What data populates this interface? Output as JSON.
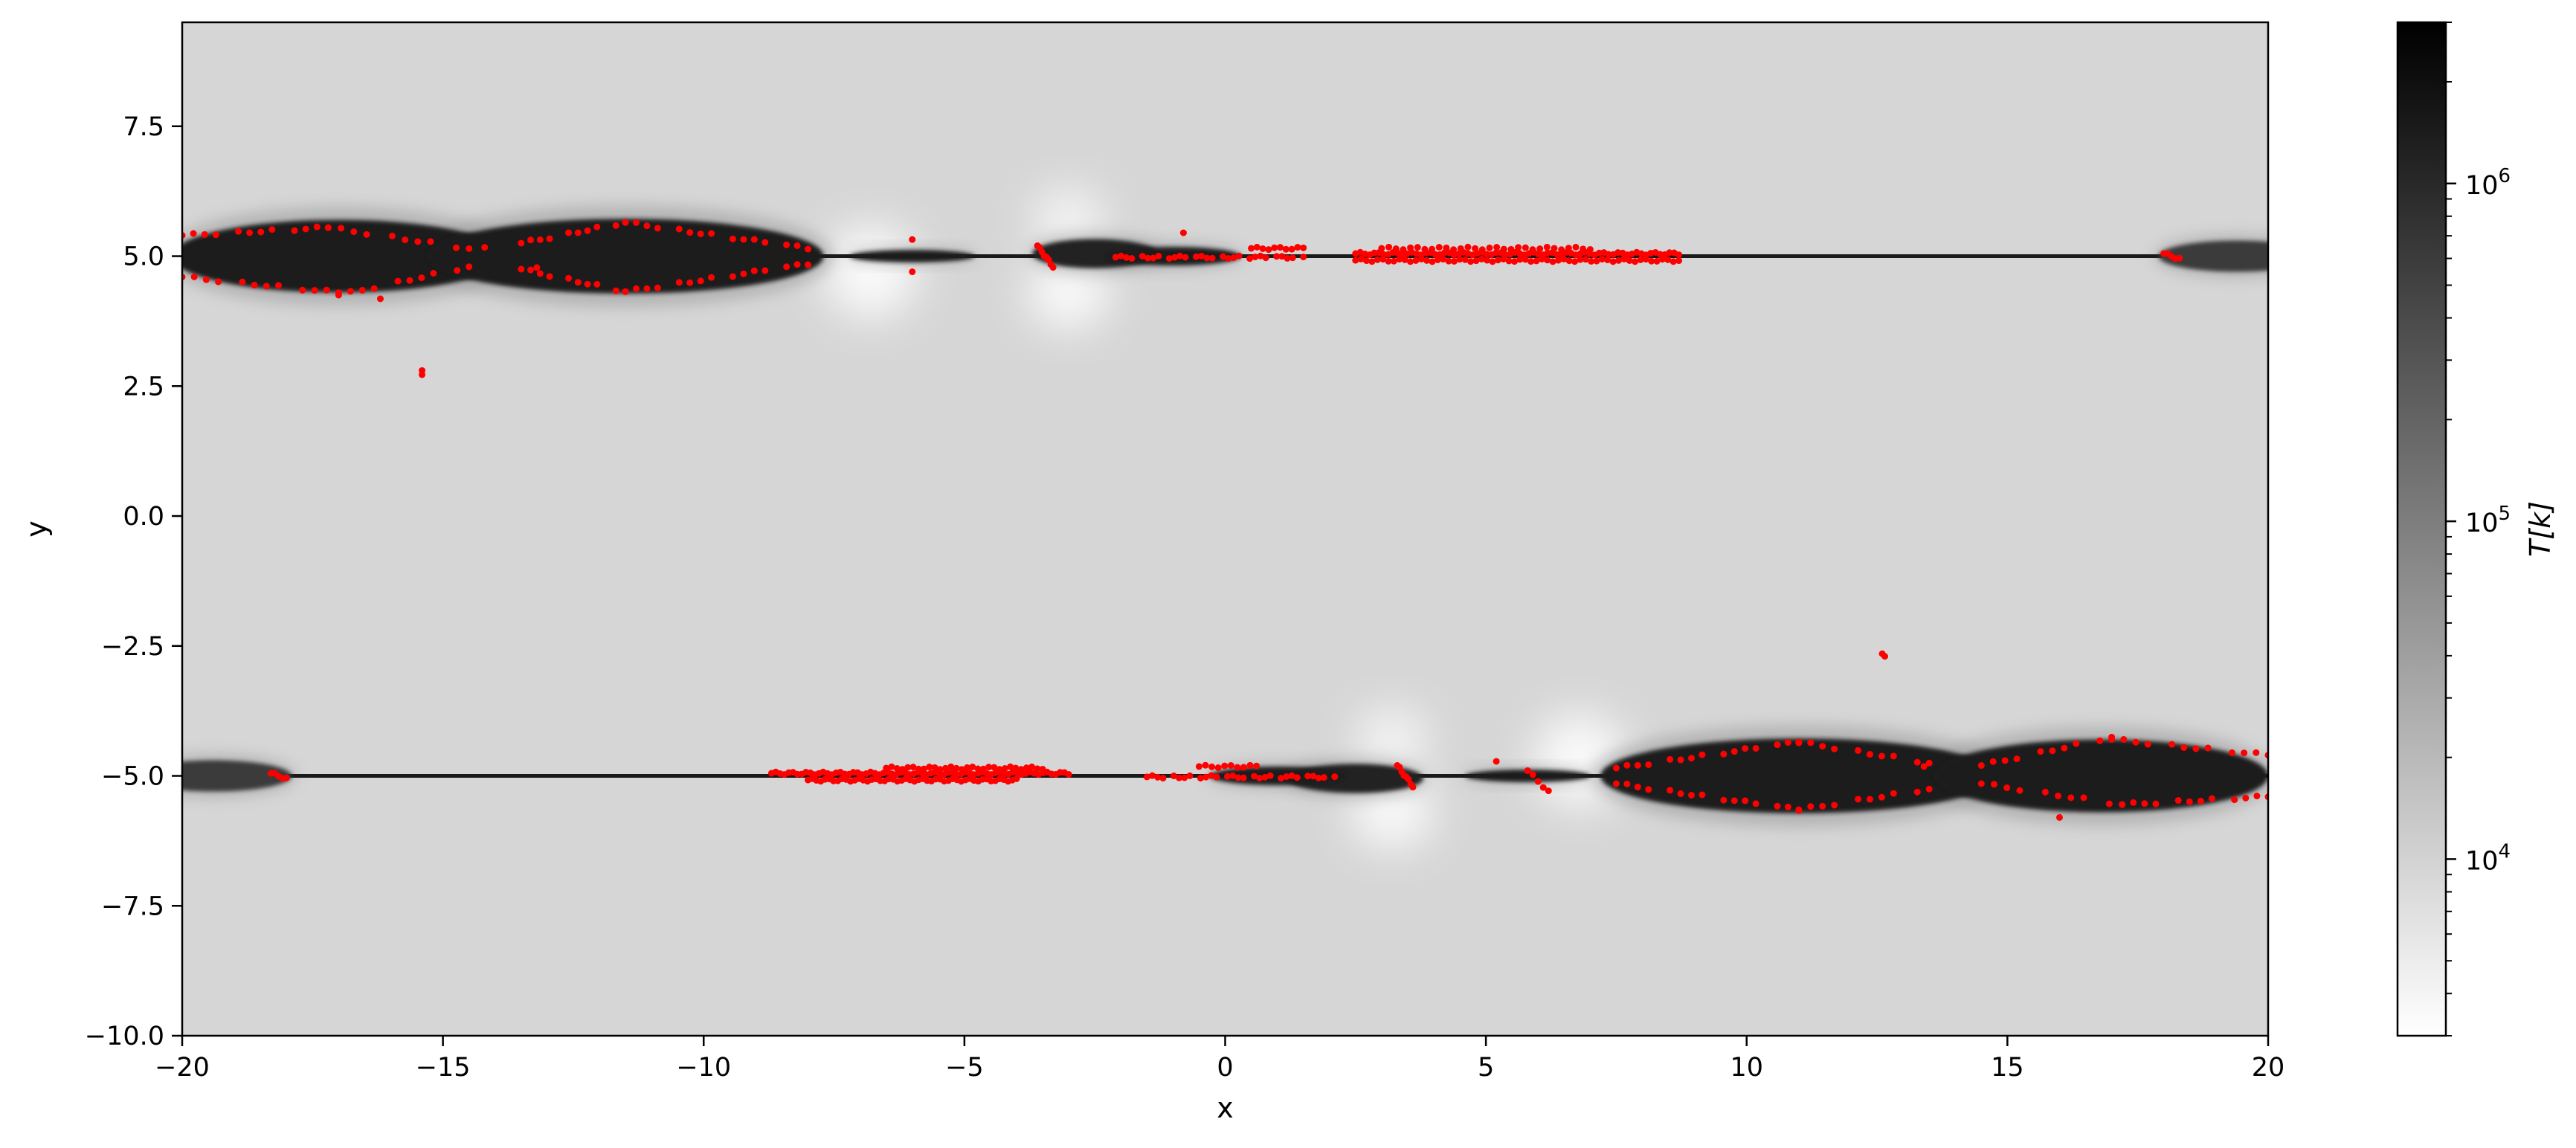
{
  "chart_data": {
    "type": "heatmap",
    "title": "",
    "xlabel": "x",
    "ylabel": "y",
    "xlim": [
      -20,
      20
    ],
    "ylim": [
      -10,
      9.5
    ],
    "grid": false,
    "x_ticks": [
      {
        "value": -20,
        "label": "−20"
      },
      {
        "value": -15,
        "label": "−15"
      },
      {
        "value": -10,
        "label": "−10"
      },
      {
        "value": -5,
        "label": "−5"
      },
      {
        "value": 0,
        "label": "0"
      },
      {
        "value": 5,
        "label": "5"
      },
      {
        "value": 10,
        "label": "10"
      },
      {
        "value": 15,
        "label": "15"
      },
      {
        "value": 20,
        "label": "20"
      }
    ],
    "y_ticks": [
      {
        "value": 7.5,
        "label": "7.5"
      },
      {
        "value": 5.0,
        "label": "5.0"
      },
      {
        "value": 2.5,
        "label": "2.5"
      },
      {
        "value": 0.0,
        "label": "0.0"
      },
      {
        "value": -2.5,
        "label": "−2.5"
      },
      {
        "value": -5.0,
        "label": "−5.0"
      },
      {
        "value": -7.5,
        "label": "−7.5"
      },
      {
        "value": -10.0,
        "label": "−10.0"
      }
    ],
    "colorbar": {
      "label": "T[k]",
      "scale": "log",
      "range": [
        3000,
        3000000
      ],
      "colormap": "gray_r",
      "ticks": [
        {
          "value": 10000,
          "base": "10",
          "exp": "4"
        },
        {
          "value": 100000,
          "base": "10",
          "exp": "5"
        },
        {
          "value": 1000000,
          "base": "10",
          "exp": "6"
        }
      ]
    },
    "background_temperature": 9000,
    "current_sheets": [
      {
        "y": 5.0,
        "x_start": -20,
        "x_end": 20,
        "temperature": 1500000
      },
      {
        "y": -5.0,
        "x_start": -20,
        "x_end": 20,
        "temperature": 1500000
      }
    ],
    "hot_islands": [
      {
        "cx": -17.0,
        "cy": 5.0,
        "half_width": 3.2,
        "half_height": 0.7,
        "temperature": 1400000
      },
      {
        "cx": -11.5,
        "cy": 5.0,
        "half_width": 3.8,
        "half_height": 0.72,
        "temperature": 1400000
      },
      {
        "cx": -6.0,
        "cy": 5.0,
        "half_width": 1.2,
        "half_height": 0.12,
        "temperature": 1500000
      },
      {
        "cx": -2.5,
        "cy": 5.05,
        "half_width": 1.2,
        "half_height": 0.28,
        "temperature": 1200000
      },
      {
        "cx": -1.0,
        "cy": 5.0,
        "half_width": 1.3,
        "half_height": 0.18,
        "temperature": 1500000
      },
      {
        "cx": 19.4,
        "cy": 5.0,
        "half_width": 1.5,
        "half_height": 0.3,
        "temperature": 600000
      },
      {
        "cx": 11.0,
        "cy": -5.0,
        "half_width": 3.8,
        "half_height": 0.72,
        "temperature": 1400000
      },
      {
        "cx": 16.8,
        "cy": -5.0,
        "half_width": 3.2,
        "half_height": 0.7,
        "temperature": 1400000
      },
      {
        "cx": 2.5,
        "cy": -5.05,
        "half_width": 1.3,
        "half_height": 0.28,
        "temperature": 1200000
      },
      {
        "cx": 5.8,
        "cy": -5.0,
        "half_width": 1.2,
        "half_height": 0.12,
        "temperature": 1500000
      },
      {
        "cx": 1.0,
        "cy": -5.0,
        "half_width": 1.3,
        "half_height": 0.18,
        "temperature": 1500000
      },
      {
        "cx": -19.4,
        "cy": -5.0,
        "half_width": 1.5,
        "half_height": 0.3,
        "temperature": 600000
      }
    ],
    "cool_spots": [
      {
        "cx": -6.8,
        "cy": 4.7,
        "rx": 0.9,
        "ry": 0.9,
        "temperature": 3500
      },
      {
        "cx": -3.0,
        "cy": 4.3,
        "rx": 0.8,
        "ry": 0.7,
        "temperature": 3500
      },
      {
        "cx": -3.0,
        "cy": 5.7,
        "rx": 0.7,
        "ry": 0.6,
        "temperature": 4000
      },
      {
        "cx": 6.8,
        "cy": -4.7,
        "rx": 0.9,
        "ry": 0.9,
        "temperature": 3500
      },
      {
        "cx": 3.2,
        "cy": -5.7,
        "rx": 0.8,
        "ry": 0.7,
        "temperature": 3500
      },
      {
        "cx": 3.2,
        "cy": -4.3,
        "rx": 0.7,
        "ry": 0.6,
        "temperature": 4000
      }
    ],
    "particle_color": "#ff0000",
    "particle_arcs": [
      {
        "xs": -20.0,
        "xe": -17.2,
        "yl": 5.4,
        "yr": 5.55,
        "n": 14,
        "gap": 0.45
      },
      {
        "xs": -17.2,
        "xe": -14.5,
        "yl": 5.55,
        "yr": 5.15,
        "n": 12,
        "gap": 0.4
      },
      {
        "xs": -20.0,
        "xe": -17.0,
        "yl": 4.6,
        "yr": 4.3,
        "n": 14,
        "gap": 0.45
      },
      {
        "xs": -17.0,
        "xe": -14.5,
        "yl": 4.25,
        "yr": 4.8,
        "n": 12,
        "gap": 0.4
      },
      {
        "xs": -13.5,
        "xe": -11.5,
        "yl": 5.25,
        "yr": 5.65,
        "n": 12,
        "gap": 0.4
      },
      {
        "xs": -11.5,
        "xe": -8.0,
        "yl": 5.65,
        "yr": 5.15,
        "n": 18,
        "gap": 0.3
      },
      {
        "xs": -13.5,
        "xe": -11.5,
        "yl": 4.75,
        "yr": 4.32,
        "n": 12,
        "gap": 0.4
      },
      {
        "xs": -11.5,
        "xe": -8.0,
        "yl": 4.32,
        "yr": 4.85,
        "n": 18,
        "gap": 0.3
      },
      {
        "xs": -3.6,
        "xe": -3.3,
        "yl": 5.2,
        "yr": 4.8,
        "n": 8,
        "gap": 0.0
      },
      {
        "xs": -2.1,
        "xe": 1.5,
        "yl": 4.98,
        "yr": 4.98,
        "n": 36,
        "gap": 0.15
      },
      {
        "xs": 0.5,
        "xe": 1.5,
        "yl": 5.15,
        "yr": 5.15,
        "n": 10,
        "gap": 0.0
      },
      {
        "xs": 2.5,
        "xe": 8.7,
        "yl": 5.05,
        "yr": 5.05,
        "n": 70,
        "gap": 0.0
      },
      {
        "xs": 2.5,
        "xe": 8.7,
        "yl": 4.92,
        "yr": 4.92,
        "n": 60,
        "gap": 0.0
      },
      {
        "xs": 3.0,
        "xe": 7.0,
        "yl": 5.15,
        "yr": 5.15,
        "n": 30,
        "gap": 0.0
      },
      {
        "xs": 18.0,
        "xe": 18.3,
        "yl": 5.05,
        "yr": 4.95,
        "n": 5,
        "gap": 0.0
      },
      {
        "xs": -18.3,
        "xe": -18.0,
        "yl": -4.95,
        "yr": -5.05,
        "n": 5,
        "gap": 0.0
      },
      {
        "xs": -8.7,
        "xe": -3.0,
        "yl": -4.95,
        "yr": -4.95,
        "n": 70,
        "gap": 0.0
      },
      {
        "xs": -8.0,
        "xe": -4.0,
        "yl": -5.08,
        "yr": -5.08,
        "n": 50,
        "gap": 0.0
      },
      {
        "xs": -6.5,
        "xe": -3.5,
        "yl": -4.85,
        "yr": -4.85,
        "n": 30,
        "gap": 0.0
      },
      {
        "xs": -1.5,
        "xe": 2.1,
        "yl": -5.02,
        "yr": -5.02,
        "n": 36,
        "gap": 0.15
      },
      {
        "xs": -0.5,
        "xe": 0.6,
        "yl": -4.82,
        "yr": -4.82,
        "n": 10,
        "gap": 0.0
      },
      {
        "xs": 3.3,
        "xe": 3.6,
        "yl": -4.8,
        "yr": -5.2,
        "n": 8,
        "gap": 0.0
      },
      {
        "xs": 5.8,
        "xe": 6.2,
        "yl": -4.9,
        "yr": -5.3,
        "n": 5,
        "gap": 0.0
      },
      {
        "xs": 7.5,
        "xe": 11.0,
        "yl": -4.85,
        "yr": -4.35,
        "n": 18,
        "gap": 0.3
      },
      {
        "xs": 11.0,
        "xe": 13.5,
        "yl": -4.35,
        "yr": -4.75,
        "n": 12,
        "gap": 0.4
      },
      {
        "xs": 7.5,
        "xe": 11.0,
        "yl": -5.15,
        "yr": -5.65,
        "n": 18,
        "gap": 0.3
      },
      {
        "xs": 11.0,
        "xe": 13.5,
        "yl": -5.65,
        "yr": -5.25,
        "n": 12,
        "gap": 0.4
      },
      {
        "xs": 14.5,
        "xe": 17.0,
        "yl": -4.8,
        "yr": -4.25,
        "n": 12,
        "gap": 0.4
      },
      {
        "xs": 17.0,
        "xe": 20.0,
        "yl": -4.3,
        "yr": -4.6,
        "n": 14,
        "gap": 0.45
      },
      {
        "xs": 14.5,
        "xe": 17.2,
        "yl": -5.15,
        "yr": -5.55,
        "n": 12,
        "gap": 0.4
      },
      {
        "xs": 17.2,
        "xe": 20.0,
        "yl": -5.55,
        "yr": -5.4,
        "n": 14,
        "gap": 0.45
      }
    ],
    "particle_singles": [
      {
        "x": -15.4,
        "y": 2.8
      },
      {
        "x": -15.4,
        "y": 2.72
      },
      {
        "x": -16.2,
        "y": 4.18
      },
      {
        "x": -6.0,
        "y": 5.32
      },
      {
        "x": -6.0,
        "y": 4.7
      },
      {
        "x": -0.8,
        "y": 5.45
      },
      {
        "x": 12.6,
        "y": -2.65
      },
      {
        "x": 12.65,
        "y": -2.7
      },
      {
        "x": 16.0,
        "y": -5.8
      },
      {
        "x": 5.2,
        "y": -4.72
      },
      {
        "x": 13.4,
        "y": -4.82
      },
      {
        "x": -13.2,
        "y": 4.78
      },
      {
        "x": -14.2,
        "y": 5.17
      }
    ]
  }
}
